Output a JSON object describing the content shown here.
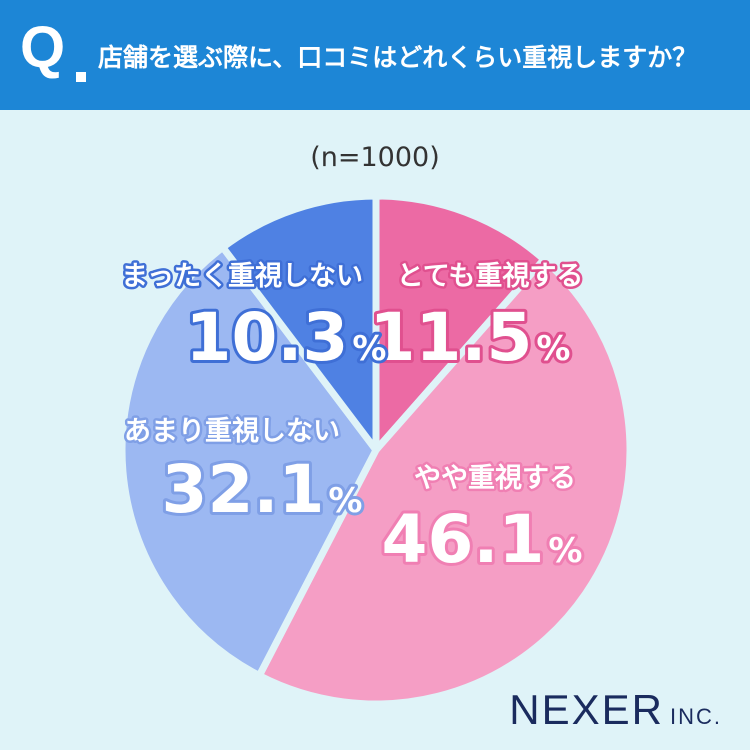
{
  "header": {
    "q_mark": "Q",
    "question": "店舗を選ぶ際に、口コミはどれくらい重視しますか？"
  },
  "sample": "(n=1000)",
  "chart_data": {
    "type": "pie",
    "categories": [
      "とても重視する",
      "やや重視する",
      "あまり重視しない",
      "まったく重視しない"
    ],
    "values": [
      11.5,
      46.1,
      32.1,
      10.3
    ],
    "value_labels": [
      "11.5",
      "46.1",
      "32.1",
      "10.3"
    ],
    "unit": "%",
    "colors": [
      "#ec6aa4",
      "#f59ec5",
      "#9cb8f2",
      "#4f81e3"
    ],
    "label_outline_colors": [
      "#e0508f",
      "#f07fb3",
      "#7f9fe6",
      "#3f6fd6"
    ]
  },
  "brand": {
    "name": "NEXER",
    "suffix": "INC."
  }
}
